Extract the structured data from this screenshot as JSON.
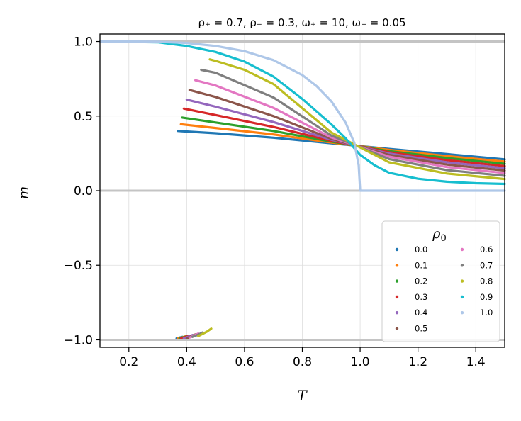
{
  "chart_data": {
    "type": "line",
    "title": "ρ₊ = 0.7,  ρ₋ = 0.3,  ω₊ = 10,  ω₋ = 0.05",
    "xlabel": "T",
    "ylabel": "m",
    "xlim": [
      0.1,
      1.5
    ],
    "ylim": [
      -1.05,
      1.05
    ],
    "xticks": [
      "0.2",
      "0.4",
      "0.6",
      "0.8",
      "1.0",
      "1.2",
      "1.4"
    ],
    "xtick_values": [
      0.2,
      0.4,
      0.6,
      0.8,
      1.0,
      1.2,
      1.4
    ],
    "yticks": [
      "−1.0",
      "−0.5",
      "0.0",
      "0.5",
      "1.0"
    ],
    "ytick_values": [
      -1.0,
      -0.5,
      0.0,
      0.5,
      1.0
    ],
    "grid": true,
    "reference_lines_y": [
      1.0,
      0.0,
      -1.0
    ],
    "legend": {
      "title": "ρ0",
      "title_main": "ρ",
      "title_sub": "0",
      "location": "lower-right",
      "columns": 2
    },
    "crossing_point": {
      "x": 0.98,
      "y": 0.3
    },
    "series": [
      {
        "name": "0.0",
        "color": "#1f77b4",
        "upper": {
          "x": [
            0.37,
            0.5,
            0.7,
            0.9,
            1.1,
            1.3,
            1.5
          ],
          "y": [
            0.4,
            0.385,
            0.355,
            0.318,
            0.28,
            0.245,
            0.21
          ]
        },
        "lower": {
          "x": [
            0.365,
            0.375,
            0.385
          ],
          "y": [
            -0.99,
            -0.985,
            -0.98
          ]
        }
      },
      {
        "name": "0.1",
        "color": "#ff7f0e",
        "upper": {
          "x": [
            0.38,
            0.5,
            0.7,
            0.9,
            1.1,
            1.3,
            1.5
          ],
          "y": [
            0.445,
            0.42,
            0.377,
            0.323,
            0.273,
            0.232,
            0.195
          ]
        },
        "lower": {
          "x": [
            0.37,
            0.385,
            0.395
          ],
          "y": [
            -0.99,
            -0.983,
            -0.977
          ]
        }
      },
      {
        "name": "0.2",
        "color": "#2ca02c",
        "upper": {
          "x": [
            0.385,
            0.5,
            0.7,
            0.9,
            1.1,
            1.3,
            1.5
          ],
          "y": [
            0.49,
            0.457,
            0.4,
            0.329,
            0.265,
            0.219,
            0.18
          ]
        },
        "lower": {
          "x": [
            0.375,
            0.39,
            0.405
          ],
          "y": [
            -0.99,
            -0.982,
            -0.974
          ]
        }
      },
      {
        "name": "0.3",
        "color": "#d62728",
        "upper": {
          "x": [
            0.39,
            0.5,
            0.7,
            0.9,
            1.1,
            1.3,
            1.5
          ],
          "y": [
            0.55,
            0.507,
            0.427,
            0.334,
            0.258,
            0.205,
            0.165
          ]
        },
        "lower": {
          "x": [
            0.38,
            0.395,
            0.41
          ],
          "y": [
            -0.99,
            -0.981,
            -0.972
          ]
        }
      },
      {
        "name": "0.4",
        "color": "#9467bd",
        "upper": {
          "x": [
            0.4,
            0.5,
            0.7,
            0.9,
            1.1,
            1.3,
            1.5
          ],
          "y": [
            0.61,
            0.563,
            0.46,
            0.341,
            0.249,
            0.19,
            0.15
          ]
        },
        "lower": {
          "x": [
            0.39,
            0.405,
            0.42
          ],
          "y": [
            -0.99,
            -0.979,
            -0.968
          ]
        }
      },
      {
        "name": "0.5",
        "color": "#8c564b",
        "upper": {
          "x": [
            0.41,
            0.5,
            0.7,
            0.9,
            1.1,
            1.3,
            1.5
          ],
          "y": [
            0.675,
            0.628,
            0.5,
            0.348,
            0.24,
            0.175,
            0.135
          ]
        },
        "lower": {
          "x": [
            0.4,
            0.415,
            0.43
          ],
          "y": [
            -0.99,
            -0.977,
            -0.964
          ]
        }
      },
      {
        "name": "0.6",
        "color": "#e377c2",
        "upper": {
          "x": [
            0.43,
            0.5,
            0.7,
            0.9,
            1.1,
            1.3,
            1.5
          ],
          "y": [
            0.74,
            0.705,
            0.555,
            0.357,
            0.228,
            0.158,
            0.118
          ]
        },
        "lower": {
          "x": [
            0.41,
            0.425,
            0.44
          ],
          "y": [
            -0.985,
            -0.972,
            -0.958
          ]
        }
      },
      {
        "name": "0.7",
        "color": "#7f7f7f",
        "upper": {
          "x": [
            0.45,
            0.5,
            0.7,
            0.9,
            1.1,
            1.3,
            1.5
          ],
          "y": [
            0.81,
            0.79,
            0.625,
            0.37,
            0.212,
            0.138,
            0.1
          ]
        },
        "lower": {
          "x": [
            0.42,
            0.44,
            0.455
          ],
          "y": [
            -0.98,
            -0.965,
            -0.95
          ]
        }
      },
      {
        "name": "0.8",
        "color": "#bcbd22",
        "upper": {
          "x": [
            0.48,
            0.5,
            0.6,
            0.7,
            0.9,
            1.1,
            1.3,
            1.5
          ],
          "y": [
            0.88,
            0.87,
            0.81,
            0.715,
            0.39,
            0.19,
            0.115,
            0.078
          ]
        },
        "lower": {
          "x": [
            0.44,
            0.455,
            0.47,
            0.485
          ],
          "y": [
            -0.975,
            -0.96,
            -0.945,
            -0.925
          ]
        }
      },
      {
        "name": "0.9",
        "color": "#17becf",
        "upper": {
          "x": [
            0.1,
            0.3,
            0.4,
            0.5,
            0.6,
            0.7,
            0.8,
            0.9,
            0.95,
            1.0,
            1.05,
            1.1,
            1.2,
            1.3,
            1.4,
            1.5
          ],
          "y": [
            1.0,
            0.995,
            0.97,
            0.93,
            0.865,
            0.765,
            0.615,
            0.445,
            0.35,
            0.24,
            0.17,
            0.12,
            0.08,
            0.06,
            0.05,
            0.045
          ]
        },
        "lower": null
      },
      {
        "name": "1.0",
        "color": "#aec7e8",
        "upper": {
          "x": [
            0.1,
            0.2,
            0.3,
            0.4,
            0.5,
            0.6,
            0.7,
            0.8,
            0.85,
            0.9,
            0.95,
            0.98,
            0.995,
            1.0,
            1.1,
            1.2,
            1.3,
            1.4,
            1.5
          ],
          "y": [
            1.0,
            1.0,
            0.998,
            0.99,
            0.97,
            0.935,
            0.875,
            0.775,
            0.7,
            0.6,
            0.455,
            0.32,
            0.17,
            0.0,
            0.0,
            0.0,
            0.0,
            0.0,
            0.0
          ]
        },
        "lower": null
      }
    ]
  }
}
